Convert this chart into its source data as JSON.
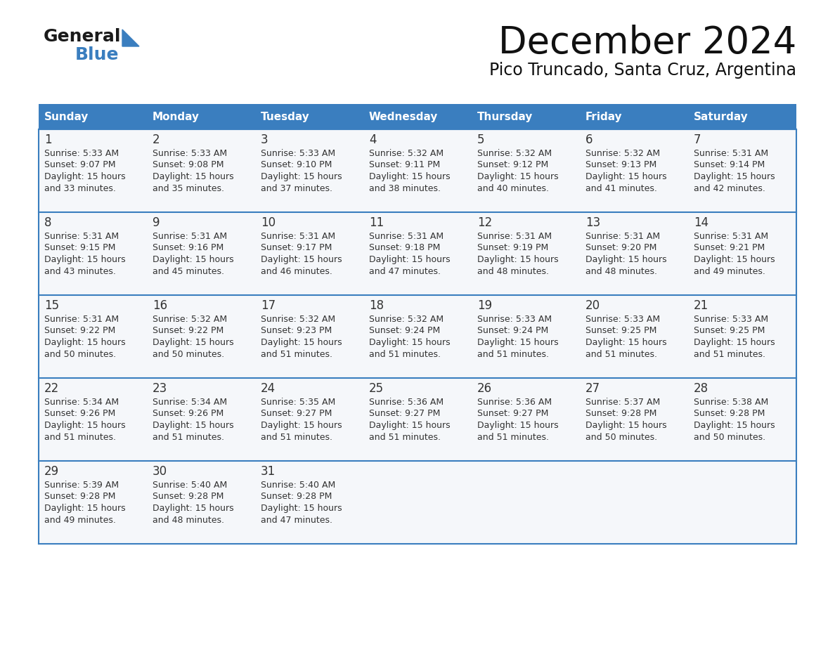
{
  "title": "December 2024",
  "subtitle": "Pico Truncado, Santa Cruz, Argentina",
  "header_color": "#3a7ebf",
  "header_text_color": "#ffffff",
  "separator_color": "#3a7ebf",
  "cell_bg_color": "#f5f7fa",
  "day_names": [
    "Sunday",
    "Monday",
    "Tuesday",
    "Wednesday",
    "Thursday",
    "Friday",
    "Saturday"
  ],
  "logo_text1": "General",
  "logo_text2": "Blue",
  "logo_triangle_color": "#3a7ebf",
  "calendar_data": [
    [
      {
        "day": "1",
        "sunrise": "5:33 AM",
        "sunset": "9:07 PM",
        "daylight": "15 hours",
        "daylight2": "and 33 minutes."
      },
      {
        "day": "2",
        "sunrise": "5:33 AM",
        "sunset": "9:08 PM",
        "daylight": "15 hours",
        "daylight2": "and 35 minutes."
      },
      {
        "day": "3",
        "sunrise": "5:33 AM",
        "sunset": "9:10 PM",
        "daylight": "15 hours",
        "daylight2": "and 37 minutes."
      },
      {
        "day": "4",
        "sunrise": "5:32 AM",
        "sunset": "9:11 PM",
        "daylight": "15 hours",
        "daylight2": "and 38 minutes."
      },
      {
        "day": "5",
        "sunrise": "5:32 AM",
        "sunset": "9:12 PM",
        "daylight": "15 hours",
        "daylight2": "and 40 minutes."
      },
      {
        "day": "6",
        "sunrise": "5:32 AM",
        "sunset": "9:13 PM",
        "daylight": "15 hours",
        "daylight2": "and 41 minutes."
      },
      {
        "day": "7",
        "sunrise": "5:31 AM",
        "sunset": "9:14 PM",
        "daylight": "15 hours",
        "daylight2": "and 42 minutes."
      }
    ],
    [
      {
        "day": "8",
        "sunrise": "5:31 AM",
        "sunset": "9:15 PM",
        "daylight": "15 hours",
        "daylight2": "and 43 minutes."
      },
      {
        "day": "9",
        "sunrise": "5:31 AM",
        "sunset": "9:16 PM",
        "daylight": "15 hours",
        "daylight2": "and 45 minutes."
      },
      {
        "day": "10",
        "sunrise": "5:31 AM",
        "sunset": "9:17 PM",
        "daylight": "15 hours",
        "daylight2": "and 46 minutes."
      },
      {
        "day": "11",
        "sunrise": "5:31 AM",
        "sunset": "9:18 PM",
        "daylight": "15 hours",
        "daylight2": "and 47 minutes."
      },
      {
        "day": "12",
        "sunrise": "5:31 AM",
        "sunset": "9:19 PM",
        "daylight": "15 hours",
        "daylight2": "and 48 minutes."
      },
      {
        "day": "13",
        "sunrise": "5:31 AM",
        "sunset": "9:20 PM",
        "daylight": "15 hours",
        "daylight2": "and 48 minutes."
      },
      {
        "day": "14",
        "sunrise": "5:31 AM",
        "sunset": "9:21 PM",
        "daylight": "15 hours",
        "daylight2": "and 49 minutes."
      }
    ],
    [
      {
        "day": "15",
        "sunrise": "5:31 AM",
        "sunset": "9:22 PM",
        "daylight": "15 hours",
        "daylight2": "and 50 minutes."
      },
      {
        "day": "16",
        "sunrise": "5:32 AM",
        "sunset": "9:22 PM",
        "daylight": "15 hours",
        "daylight2": "and 50 minutes."
      },
      {
        "day": "17",
        "sunrise": "5:32 AM",
        "sunset": "9:23 PM",
        "daylight": "15 hours",
        "daylight2": "and 51 minutes."
      },
      {
        "day": "18",
        "sunrise": "5:32 AM",
        "sunset": "9:24 PM",
        "daylight": "15 hours",
        "daylight2": "and 51 minutes."
      },
      {
        "day": "19",
        "sunrise": "5:33 AM",
        "sunset": "9:24 PM",
        "daylight": "15 hours",
        "daylight2": "and 51 minutes."
      },
      {
        "day": "20",
        "sunrise": "5:33 AM",
        "sunset": "9:25 PM",
        "daylight": "15 hours",
        "daylight2": "and 51 minutes."
      },
      {
        "day": "21",
        "sunrise": "5:33 AM",
        "sunset": "9:25 PM",
        "daylight": "15 hours",
        "daylight2": "and 51 minutes."
      }
    ],
    [
      {
        "day": "22",
        "sunrise": "5:34 AM",
        "sunset": "9:26 PM",
        "daylight": "15 hours",
        "daylight2": "and 51 minutes."
      },
      {
        "day": "23",
        "sunrise": "5:34 AM",
        "sunset": "9:26 PM",
        "daylight": "15 hours",
        "daylight2": "and 51 minutes."
      },
      {
        "day": "24",
        "sunrise": "5:35 AM",
        "sunset": "9:27 PM",
        "daylight": "15 hours",
        "daylight2": "and 51 minutes."
      },
      {
        "day": "25",
        "sunrise": "5:36 AM",
        "sunset": "9:27 PM",
        "daylight": "15 hours",
        "daylight2": "and 51 minutes."
      },
      {
        "day": "26",
        "sunrise": "5:36 AM",
        "sunset": "9:27 PM",
        "daylight": "15 hours",
        "daylight2": "and 51 minutes."
      },
      {
        "day": "27",
        "sunrise": "5:37 AM",
        "sunset": "9:28 PM",
        "daylight": "15 hours",
        "daylight2": "and 50 minutes."
      },
      {
        "day": "28",
        "sunrise": "5:38 AM",
        "sunset": "9:28 PM",
        "daylight": "15 hours",
        "daylight2": "and 50 minutes."
      }
    ],
    [
      {
        "day": "29",
        "sunrise": "5:39 AM",
        "sunset": "9:28 PM",
        "daylight": "15 hours",
        "daylight2": "and 49 minutes."
      },
      {
        "day": "30",
        "sunrise": "5:40 AM",
        "sunset": "9:28 PM",
        "daylight": "15 hours",
        "daylight2": "and 48 minutes."
      },
      {
        "day": "31",
        "sunrise": "5:40 AM",
        "sunset": "9:28 PM",
        "daylight": "15 hours",
        "daylight2": "and 47 minutes."
      },
      null,
      null,
      null,
      null
    ]
  ]
}
